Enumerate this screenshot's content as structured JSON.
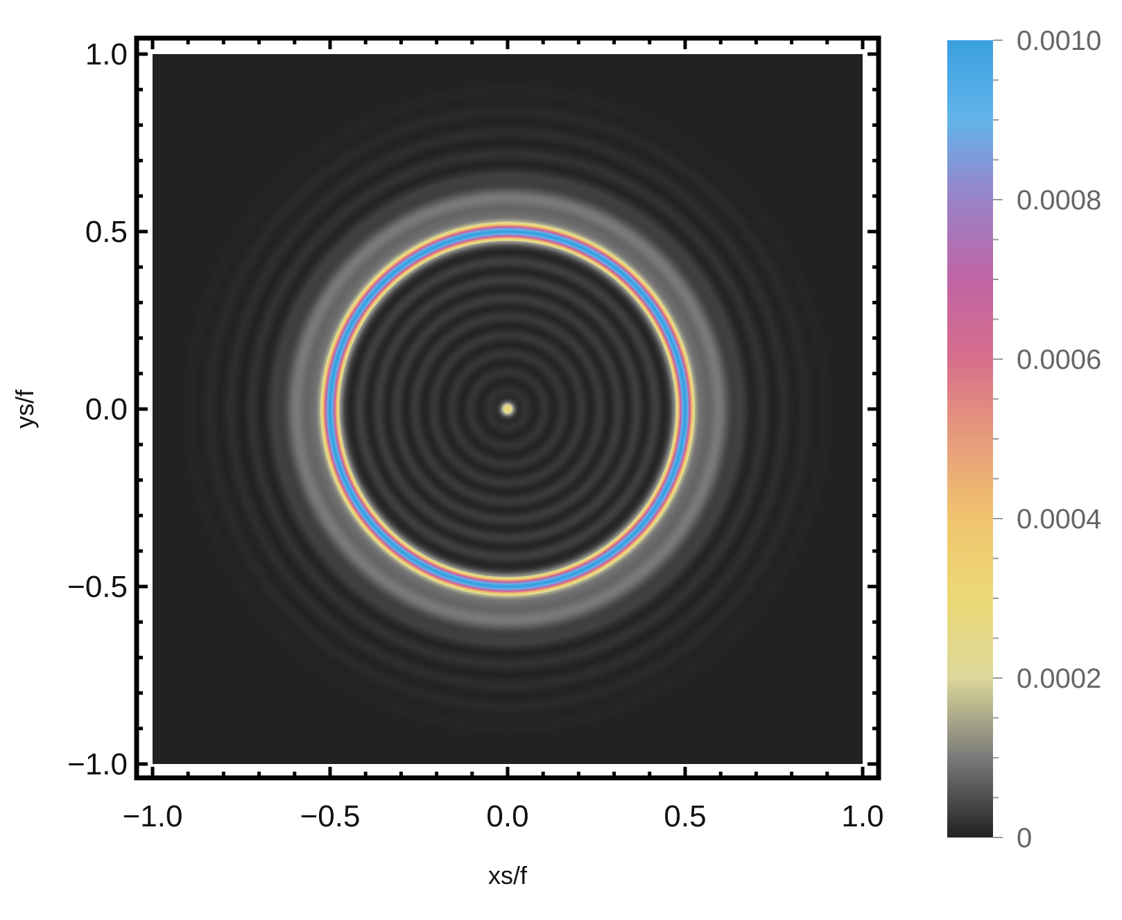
{
  "chart_data": {
    "type": "heatmap",
    "title": "",
    "xlabel": "xs/f",
    "ylabel": "ys/f",
    "xlim": [
      -1.0,
      1.0
    ],
    "ylim": [
      -1.0,
      1.0
    ],
    "x_ticks": [
      -1.0,
      -0.5,
      0.0,
      0.5,
      1.0
    ],
    "x_tick_labels": [
      "−1.0",
      "−0.5",
      "0.0",
      "0.5",
      "1.0"
    ],
    "y_ticks": [
      -1.0,
      -0.5,
      0.0,
      0.5,
      1.0
    ],
    "y_tick_labels": [
      "−1.0",
      "−0.5",
      "0.0",
      "0.5",
      "1.0"
    ],
    "pattern": "concentric rings centered at origin",
    "center": [
      0.0,
      0.0
    ],
    "features": [
      {
        "radius": 0.5,
        "value": 0.001,
        "description": "bright ring"
      },
      {
        "radius": 0.0,
        "value": 0.0003,
        "description": "central spot"
      },
      {
        "radius": 0.58,
        "value": 8e-05,
        "description": "outer halo"
      }
    ],
    "colorbar": {
      "range": [
        0,
        0.001
      ],
      "ticks": [
        0,
        0.0002,
        0.0004,
        0.0006,
        0.0008,
        0.001
      ],
      "tick_labels": [
        "0",
        "0.0002",
        "0.0004",
        "0.0006",
        "0.0008",
        "0.0010"
      ],
      "colors": [
        {
          "value": 0.0,
          "color": "#222222"
        },
        {
          "value": 0.0001,
          "color": "#7a7a7a"
        },
        {
          "value": 0.0002,
          "color": "#dcd79a"
        },
        {
          "value": 0.0003,
          "color": "#ecd976"
        },
        {
          "value": 0.0004,
          "color": "#f0c46e"
        },
        {
          "value": 0.0005,
          "color": "#e79c7c"
        },
        {
          "value": 0.0006,
          "color": "#d76e8c"
        },
        {
          "value": 0.0007,
          "color": "#c064a5"
        },
        {
          "value": 0.0008,
          "color": "#9a82c8"
        },
        {
          "value": 0.0009,
          "color": "#62b4ea"
        },
        {
          "value": 0.001,
          "color": "#3aa0e0"
        }
      ]
    }
  }
}
